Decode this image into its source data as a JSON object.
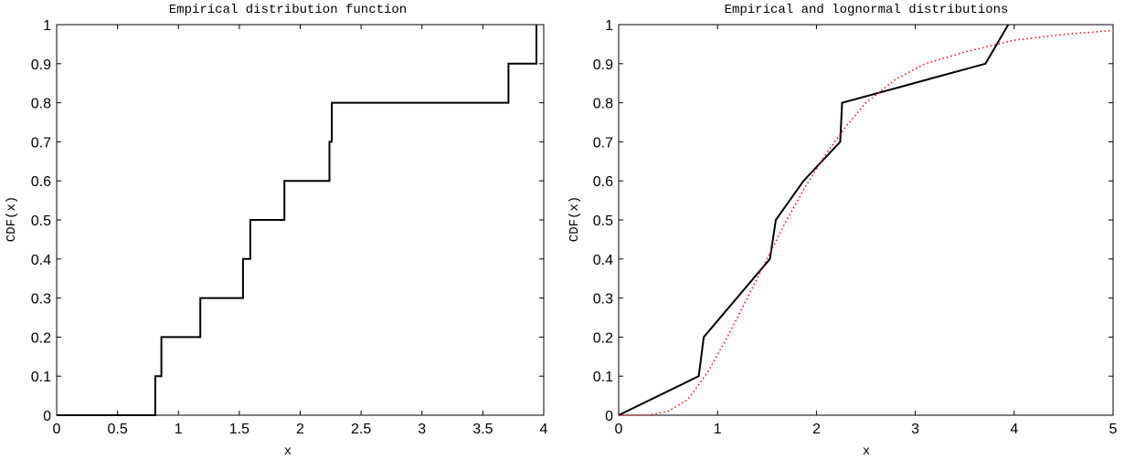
{
  "chart_data": [
    {
      "type": "line",
      "title": "Empirical distribution function",
      "xlabel": "x",
      "ylabel": "CDF(x)",
      "xlim": [
        0,
        4
      ],
      "ylim": [
        0,
        1
      ],
      "xticks": [
        0,
        0.5,
        1,
        1.5,
        2,
        2.5,
        3,
        3.5,
        4
      ],
      "xtick_labels": [
        "0",
        "0.5",
        "1",
        "1.5",
        "2",
        "2.5",
        "3",
        "3.5",
        "4"
      ],
      "yticks": [
        0,
        0.1,
        0.2,
        0.3,
        0.4,
        0.5,
        0.6,
        0.7,
        0.8,
        0.9,
        1
      ],
      "ytick_labels": [
        "0",
        "0.1",
        "0.2",
        "0.3",
        "0.4",
        "0.5",
        "0.6",
        "0.7",
        "0.8",
        "0.9",
        "1"
      ],
      "grid": false,
      "series": [
        {
          "style": "step",
          "color": "#000000",
          "x": [
            0,
            0.81,
            0.81,
            0.86,
            0.86,
            1.18,
            1.18,
            1.53,
            1.53,
            1.59,
            1.59,
            1.87,
            1.87,
            2.24,
            2.24,
            2.26,
            2.26,
            3.71,
            3.71,
            3.94,
            3.94
          ],
          "y": [
            0,
            0,
            0.1,
            0.1,
            0.2,
            0.2,
            0.3,
            0.3,
            0.4,
            0.4,
            0.5,
            0.5,
            0.6,
            0.6,
            0.7,
            0.7,
            0.8,
            0.8,
            0.9,
            0.9,
            1.0
          ]
        }
      ]
    },
    {
      "type": "line",
      "title": "Empirical and lognormal distributions",
      "xlabel": "x",
      "ylabel": "CDF(x)",
      "xlim": [
        0,
        5
      ],
      "ylim": [
        0,
        1
      ],
      "xticks": [
        0,
        1,
        2,
        3,
        4,
        5
      ],
      "xtick_labels": [
        "0",
        "1",
        "2",
        "3",
        "4",
        "5"
      ],
      "yticks": [
        0,
        0.1,
        0.2,
        0.3,
        0.4,
        0.5,
        0.6,
        0.7,
        0.8,
        0.9,
        1
      ],
      "ytick_labels": [
        "0",
        "0.1",
        "0.2",
        "0.3",
        "0.4",
        "0.5",
        "0.6",
        "0.7",
        "0.8",
        "0.9",
        "1"
      ],
      "grid": false,
      "series": [
        {
          "style": "solid",
          "color": "#000000",
          "x": [
            0,
            0.81,
            0.86,
            1.53,
            1.59,
            1.87,
            2.24,
            2.26,
            3.71,
            3.94
          ],
          "y": [
            0,
            0.1,
            0.2,
            0.4,
            0.5,
            0.6,
            0.7,
            0.8,
            0.9,
            1.0
          ]
        },
        {
          "style": "dotted",
          "color": "#ff0000",
          "x": [
            0,
            0.3,
            0.5,
            0.7,
            0.9,
            1.1,
            1.3,
            1.5,
            1.7,
            1.9,
            2.1,
            2.3,
            2.5,
            2.8,
            3.1,
            3.5,
            4.0,
            4.5,
            5.0
          ],
          "y": [
            0,
            0.0,
            0.01,
            0.04,
            0.11,
            0.2,
            0.3,
            0.4,
            0.5,
            0.59,
            0.67,
            0.74,
            0.8,
            0.86,
            0.9,
            0.93,
            0.96,
            0.975,
            0.985
          ]
        }
      ]
    }
  ]
}
